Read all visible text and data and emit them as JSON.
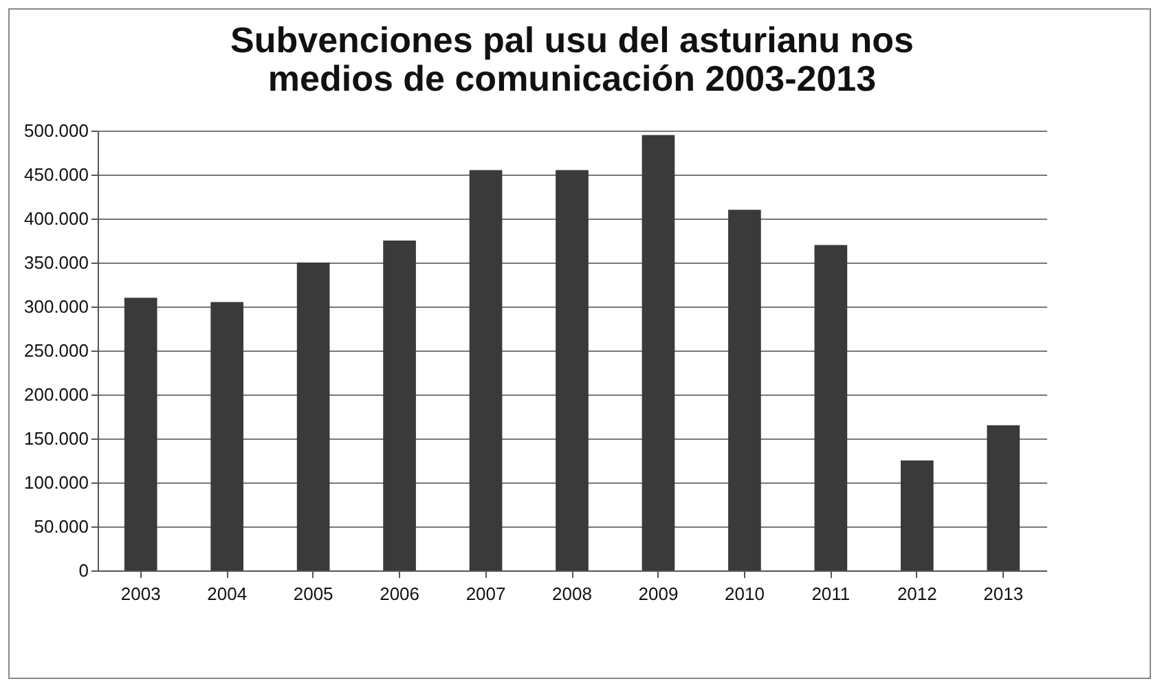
{
  "chart_data": {
    "type": "bar",
    "title": "Subvenciones pal usu del asturianu nos medios de comunicación 2003-2013",
    "categories": [
      "2003",
      "2004",
      "2005",
      "2006",
      "2007",
      "2008",
      "2009",
      "2010",
      "2011",
      "2012",
      "2013"
    ],
    "values": [
      310000,
      305000,
      350000,
      375000,
      455000,
      455000,
      495000,
      410000,
      370000,
      125000,
      165000
    ],
    "color": "#3a3a3a",
    "ylim": [
      0,
      500000
    ],
    "yticks": [
      {
        "value": 0,
        "label": "0"
      },
      {
        "value": 50000,
        "label": "50.000"
      },
      {
        "value": 100000,
        "label": "100.000"
      },
      {
        "value": 150000,
        "label": "150.000"
      },
      {
        "value": 200000,
        "label": "200.000"
      },
      {
        "value": 250000,
        "label": "250.000"
      },
      {
        "value": 300000,
        "label": "300.000"
      },
      {
        "value": 350000,
        "label": "350.000"
      },
      {
        "value": 400000,
        "label": "400.000"
      },
      {
        "value": 450000,
        "label": "450.000"
      },
      {
        "value": 500000,
        "label": "500.000"
      }
    ],
    "grid": "y"
  }
}
